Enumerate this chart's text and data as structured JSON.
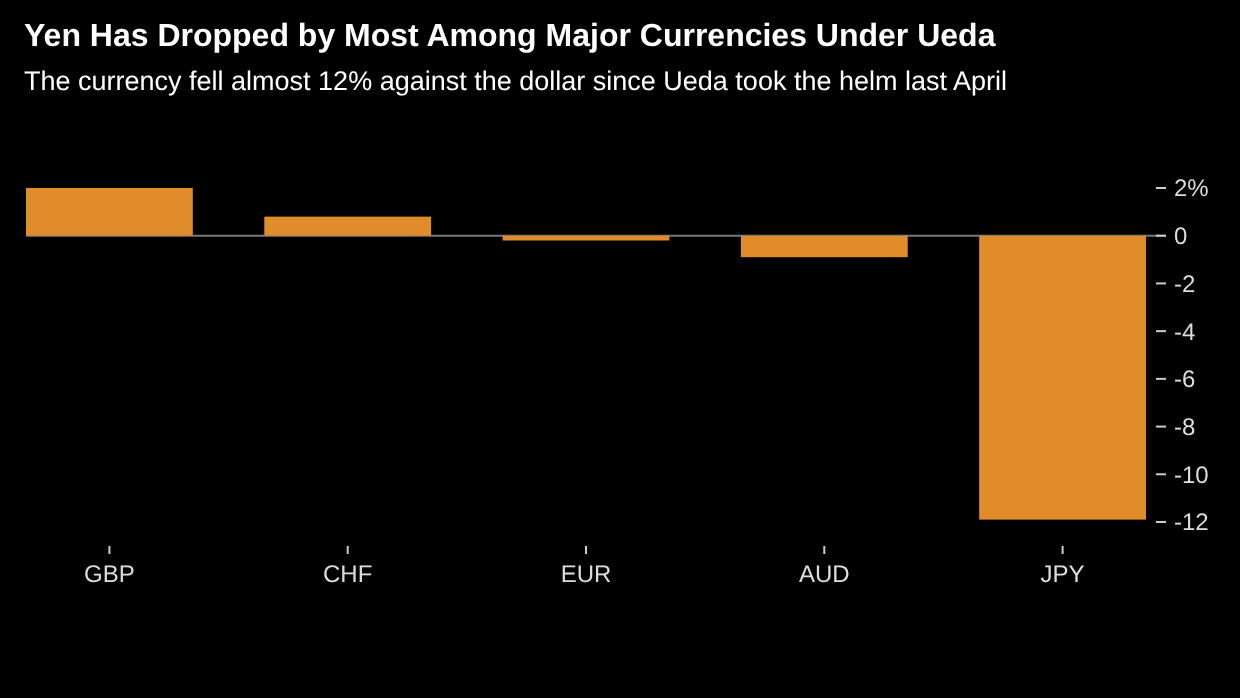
{
  "chart_data": {
    "type": "bar",
    "title": "Yen Has Dropped by Most Among Major Currencies Under Ueda",
    "subtitle": "The currency fell almost 12% against the dollar since Ueda took the helm last April",
    "categories": [
      "GBP",
      "CHF",
      "EUR",
      "AUD",
      "JPY"
    ],
    "values": [
      2,
      0.8,
      -0.2,
      -0.9,
      -11.9
    ],
    "color": "#e08c2a",
    "ylim": [
      -12,
      2
    ],
    "yticks": [
      {
        "value": 2,
        "label": "2%"
      },
      0,
      -2,
      -4,
      -6,
      -8,
      -10,
      -12
    ]
  }
}
